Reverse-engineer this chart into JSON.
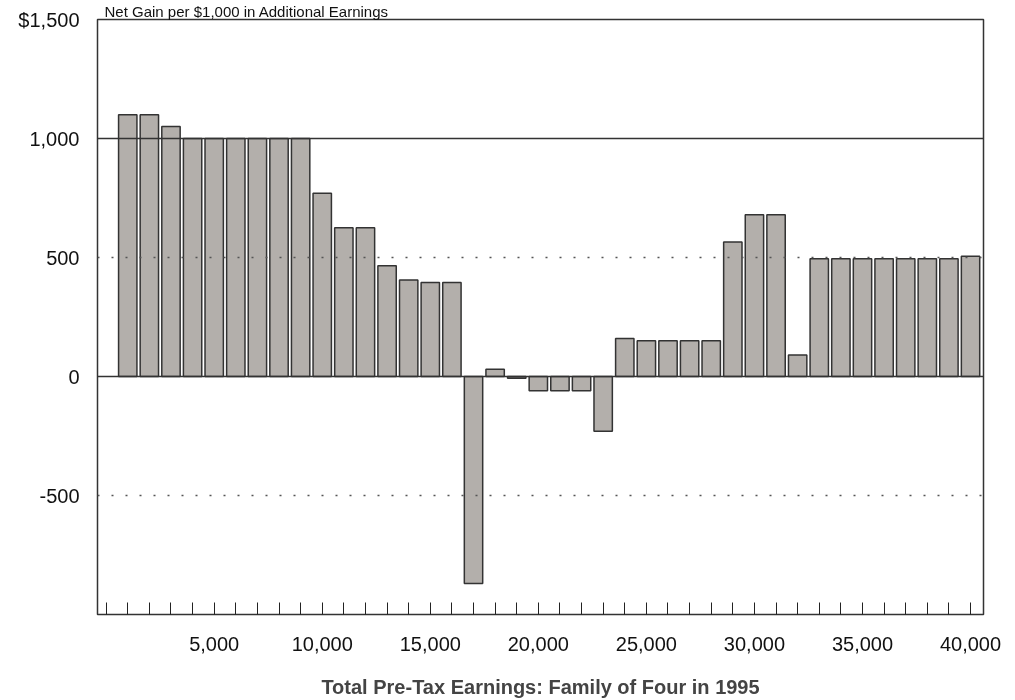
{
  "chart_data": {
    "type": "bar",
    "ylabel": "Net Gain per $1,000 in Additional Earnings",
    "xlabel": "Total Pre-Tax Earnings: Family of Four in 1995",
    "x": [
      1000,
      2000,
      3000,
      4000,
      5000,
      6000,
      7000,
      8000,
      9000,
      10000,
      11000,
      12000,
      13000,
      14000,
      15000,
      16000,
      17000,
      18000,
      19000,
      20000,
      21000,
      22000,
      23000,
      24000,
      25000,
      26000,
      27000,
      28000,
      29000,
      30000,
      31000,
      32000,
      33000,
      34000,
      35000,
      36000,
      37000,
      38000,
      39000,
      40000
    ],
    "values": [
      1100,
      1100,
      1050,
      1000,
      1000,
      1000,
      1000,
      1000,
      1000,
      770,
      625,
      625,
      465,
      405,
      395,
      395,
      -870,
      30,
      -7,
      -60,
      -60,
      -60,
      -230,
      160,
      150,
      150,
      150,
      150,
      565,
      680,
      680,
      90,
      495,
      495,
      495,
      495,
      495,
      495,
      495,
      505
    ],
    "color": "#b3afab",
    "xlim": [
      -400,
      40600
    ],
    "xticks": [
      {
        "value": 0,
        "label": null
      },
      {
        "value": 1000,
        "label": null
      },
      {
        "value": 2000,
        "label": null
      },
      {
        "value": 3000,
        "label": null
      },
      {
        "value": 4000,
        "label": null
      },
      {
        "value": 5000,
        "label": "5,000"
      },
      {
        "value": 6000,
        "label": null
      },
      {
        "value": 7000,
        "label": null
      },
      {
        "value": 8000,
        "label": null
      },
      {
        "value": 9000,
        "label": null
      },
      {
        "value": 10000,
        "label": "10,000"
      },
      {
        "value": 11000,
        "label": null
      },
      {
        "value": 12000,
        "label": null
      },
      {
        "value": 13000,
        "label": null
      },
      {
        "value": 14000,
        "label": null
      },
      {
        "value": 15000,
        "label": "15,000"
      },
      {
        "value": 16000,
        "label": null
      },
      {
        "value": 17000,
        "label": null
      },
      {
        "value": 18000,
        "label": null
      },
      {
        "value": 19000,
        "label": null
      },
      {
        "value": 20000,
        "label": "20,000"
      },
      {
        "value": 21000,
        "label": null
      },
      {
        "value": 22000,
        "label": null
      },
      {
        "value": 23000,
        "label": null
      },
      {
        "value": 24000,
        "label": null
      },
      {
        "value": 25000,
        "label": "25,000"
      },
      {
        "value": 26000,
        "label": null
      },
      {
        "value": 27000,
        "label": null
      },
      {
        "value": 28000,
        "label": null
      },
      {
        "value": 29000,
        "label": null
      },
      {
        "value": 30000,
        "label": "30,000"
      },
      {
        "value": 31000,
        "label": null
      },
      {
        "value": 32000,
        "label": null
      },
      {
        "value": 33000,
        "label": null
      },
      {
        "value": 34000,
        "label": null
      },
      {
        "value": 35000,
        "label": "35,000"
      },
      {
        "value": 36000,
        "label": null
      },
      {
        "value": 37000,
        "label": null
      },
      {
        "value": 38000,
        "label": null
      },
      {
        "value": 39000,
        "label": null
      },
      {
        "value": 40000,
        "label": "40,000"
      }
    ],
    "ylim": [
      -1000,
      1500
    ],
    "yticks": [
      -500,
      0,
      500,
      {
        "value": 1000,
        "label": "1,000"
      },
      {
        "value": 1500,
        "label": "$1,500"
      }
    ],
    "ref_lines": [
      {
        "axis": "y",
        "value": 1000,
        "color": "#333333",
        "line_style": "solid"
      },
      {
        "axis": "y",
        "value": 500,
        "color": "#555555",
        "line_style": "dotted"
      },
      {
        "axis": "y",
        "value": -500,
        "color": "#555555",
        "line_style": "dotted"
      },
      {
        "axis": "y",
        "value": 0,
        "color": "#333333",
        "line_style": "solid"
      }
    ],
    "grid": false
  }
}
